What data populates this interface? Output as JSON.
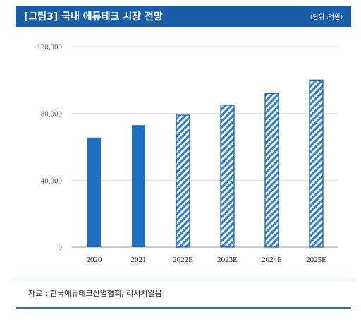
{
  "header": {
    "title": "[그림3] 국내 에듀테크 시장 전망",
    "unit": "(단위 :억원)"
  },
  "source": "자료 : 한국에듀테크산업협회, 리서치알음",
  "colors": {
    "header_bg": "#1a5ea8",
    "bar_solid": "#1f6fc0",
    "bar_hatch": "#2f7ed0"
  },
  "chart_data": {
    "type": "bar",
    "categories": [
      "2020",
      "2021",
      "2022E",
      "2023E",
      "2024E",
      "2025E"
    ],
    "values": [
      65600,
      73000,
      79000,
      85000,
      92000,
      100000
    ],
    "bar_style": [
      "solid",
      "solid",
      "hatched",
      "hatched",
      "hatched",
      "hatched"
    ],
    "ylim": [
      0,
      120000
    ],
    "yticks": [
      "0",
      "40,000",
      "80,000",
      "120,000"
    ],
    "ytick_values": [
      0,
      40000,
      80000,
      120000
    ],
    "grid": true
  }
}
